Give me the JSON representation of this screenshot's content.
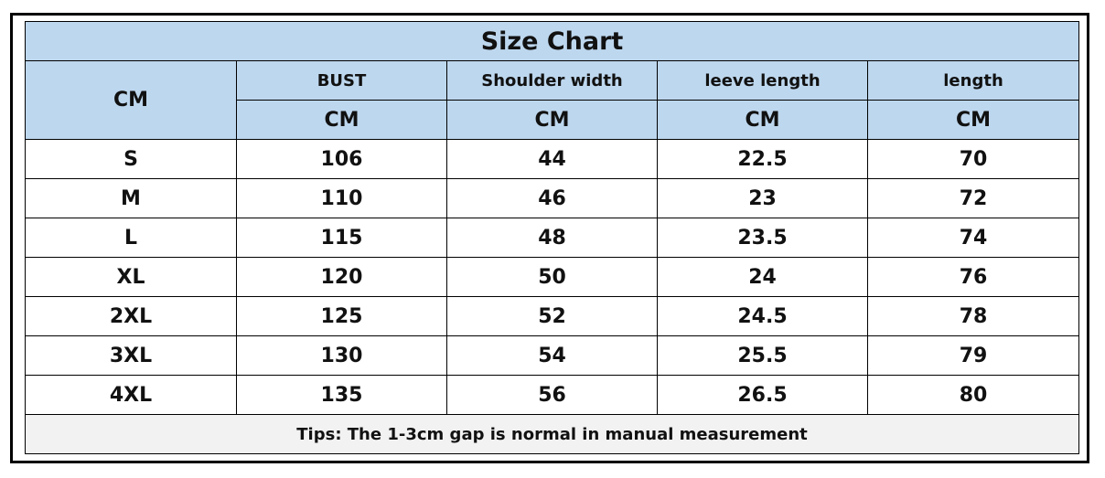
{
  "title": "Size Chart",
  "corner_label": "CM",
  "columns": [
    {
      "name": "BUST",
      "unit": "CM"
    },
    {
      "name": "Shoulder width",
      "unit": "CM"
    },
    {
      "name": "leeve length",
      "unit": "CM"
    },
    {
      "name": "length",
      "unit": "CM"
    }
  ],
  "rows": [
    {
      "size": "S",
      "values": [
        "106",
        "44",
        "22.5",
        "70"
      ]
    },
    {
      "size": "M",
      "values": [
        "110",
        "46",
        "23",
        "72"
      ]
    },
    {
      "size": "L",
      "values": [
        "115",
        "48",
        "23.5",
        "74"
      ]
    },
    {
      "size": "XL",
      "values": [
        "120",
        "50",
        "24",
        "76"
      ]
    },
    {
      "size": "2XL",
      "values": [
        "125",
        "52",
        "24.5",
        "78"
      ]
    },
    {
      "size": "3XL",
      "values": [
        "130",
        "54",
        "25.5",
        "79"
      ]
    },
    {
      "size": "4XL",
      "values": [
        "135",
        "56",
        "26.5",
        "80"
      ]
    }
  ],
  "tips": "Tips: The 1-3cm gap is normal in manual measurement",
  "colors": {
    "header_bg": "#BDD7EE",
    "tips_bg": "#F2F2F2"
  }
}
